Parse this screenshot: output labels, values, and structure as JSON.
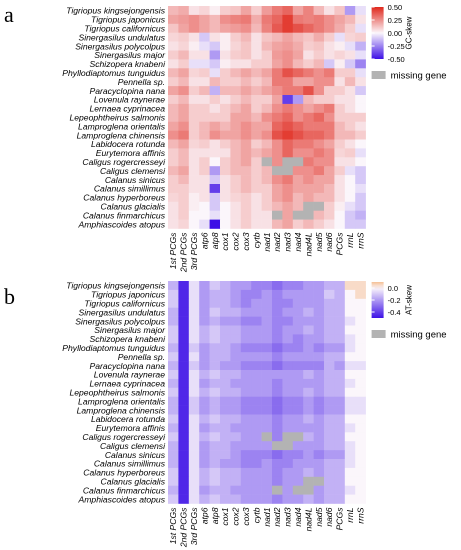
{
  "panel_labels": [
    "a",
    "b"
  ],
  "chart_data": [
    {
      "type": "heatmap",
      "panel": "a",
      "rows": [
        "Tigriopus kingsejongensis",
        "Tigriopus japonicus",
        "Tigriopus californicus",
        "Sinergasilus undulatus",
        "Sinergasilus polycolpus",
        "Sinergasilus major",
        "Schizopera knabeni",
        "Phyllodiaptomus tunguidus",
        "Pennella sp.",
        "Paracyclopina nana",
        "Lovenula raynerae",
        "Lernaea cyprinacea",
        "Lepeophtheirus salmonis",
        "Lamproglena orientalis",
        "Lamproglena chinensis",
        "Labidocera rotunda",
        "Eurytemora affinis",
        "Caligus rogercresseyi",
        "Caligus clemensi",
        "Calanus sinicus",
        "Calanus simillimus",
        "Calanus hyperboreus",
        "Calanus glacialis",
        "Calanus finmarchicus",
        "Amphiascoides atopus"
      ],
      "columns": [
        "1st PCGs",
        "2nd PCGs",
        "3rd PCGs",
        "atp6",
        "atp8",
        "cox1",
        "cox2",
        "cox3",
        "cytb",
        "nad1",
        "nad2",
        "nad3",
        "nad4",
        "nad4L",
        "nad5",
        "nad6",
        "PCGs",
        "rrnL",
        "rrnS"
      ],
      "legend_title": "GC-skew",
      "colorbar_ticks": [
        0.5,
        0.25,
        0.0,
        -0.25,
        -0.5
      ],
      "color_range": [
        -0.5,
        0.5
      ],
      "missing_label": "missing gene",
      "missing_color": "#b3b3b3",
      "colors": {
        "low": "#3d10e6",
        "mid": "#fbf6fb",
        "high": "#e0281c"
      },
      "values": [
        [
          0.15,
          0.18,
          0.05,
          0.08,
          0.02,
          0.1,
          0.12,
          0.2,
          0.1,
          0.22,
          0.3,
          0.35,
          0.2,
          0.28,
          0.15,
          0.05,
          0.12,
          -0.2,
          -0.05
        ],
        [
          0.2,
          0.22,
          0.25,
          0.2,
          0.15,
          0.25,
          0.28,
          0.3,
          0.18,
          0.3,
          0.35,
          0.45,
          0.3,
          0.28,
          0.3,
          0.25,
          0.2,
          0.15,
          0.05
        ],
        [
          0.12,
          0.2,
          0.25,
          0.2,
          0.15,
          0.2,
          0.22,
          0.25,
          0.15,
          0.28,
          0.38,
          0.45,
          0.4,
          0.35,
          0.3,
          0.25,
          0.18,
          0.1,
          -0.05
        ],
        [
          0.08,
          0.1,
          0.05,
          -0.1,
          0.05,
          0.02,
          0.1,
          0.15,
          0.05,
          0.12,
          0.15,
          0.2,
          0.15,
          0.12,
          0.18,
          0.1,
          -0.05,
          0.08,
          0.1
        ],
        [
          0.05,
          0.08,
          0.02,
          -0.05,
          -0.1,
          0.02,
          0.08,
          0.12,
          0.05,
          0.15,
          0.2,
          0.22,
          0.18,
          0.1,
          0.12,
          0.05,
          0.02,
          -0.05,
          -0.15
        ],
        [
          0.1,
          0.15,
          0.05,
          0.05,
          -0.2,
          0.05,
          0.1,
          0.12,
          0.05,
          0.1,
          0.22,
          0.25,
          0.2,
          0.05,
          0.1,
          0.05,
          0.08,
          0.05,
          -0.05
        ],
        [
          0.05,
          0.1,
          -0.05,
          -0.05,
          -0.1,
          0.02,
          0.05,
          0.05,
          0.1,
          0.1,
          0.2,
          0.25,
          0.15,
          0.1,
          0.15,
          -0.1,
          0.02,
          -0.1,
          -0.25
        ],
        [
          0.15,
          0.2,
          0.08,
          0.1,
          -0.05,
          0.1,
          0.15,
          0.2,
          0.15,
          0.2,
          0.3,
          0.4,
          0.35,
          0.3,
          0.25,
          0.3,
          0.1,
          0.1,
          -0.05
        ],
        [
          0.1,
          0.15,
          0.05,
          0.05,
          0.15,
          0.1,
          0.1,
          0.15,
          0.1,
          0.15,
          0.3,
          0.3,
          0.2,
          0.2,
          0.25,
          0.25,
          0.05,
          0.15,
          0.05
        ],
        [
          0.2,
          0.25,
          0.1,
          0.15,
          -0.15,
          0.15,
          0.15,
          0.2,
          0.15,
          0.2,
          0.25,
          0.3,
          0.3,
          0.4,
          0.25,
          0.1,
          0.1,
          0.05,
          -0.1
        ],
        [
          0.1,
          0.15,
          0.05,
          0.05,
          0.1,
          0.05,
          0.1,
          0.15,
          0.1,
          0.1,
          0.2,
          -0.4,
          -0.2,
          0.15,
          0.1,
          0.1,
          0.05,
          0.05,
          0.0
        ],
        [
          0.15,
          0.2,
          0.1,
          0.1,
          0.05,
          0.1,
          0.15,
          0.2,
          0.1,
          0.15,
          0.25,
          0.3,
          0.25,
          0.2,
          0.25,
          0.3,
          0.1,
          0.05,
          0.0
        ],
        [
          0.15,
          0.2,
          0.1,
          0.1,
          0.1,
          0.1,
          0.2,
          0.2,
          0.15,
          0.25,
          0.3,
          0.35,
          0.25,
          0.3,
          0.35,
          0.25,
          0.1,
          0.1,
          0.1
        ],
        [
          0.2,
          0.25,
          0.1,
          0.15,
          0.2,
          0.15,
          0.2,
          0.25,
          0.2,
          0.2,
          0.35,
          0.4,
          0.35,
          0.3,
          0.3,
          0.3,
          0.15,
          0.1,
          0.05
        ],
        [
          0.25,
          0.3,
          0.1,
          0.15,
          0.25,
          0.2,
          0.2,
          0.25,
          0.2,
          0.25,
          0.4,
          0.45,
          0.4,
          0.35,
          0.35,
          0.3,
          0.15,
          0.15,
          0.1
        ],
        [
          0.15,
          0.2,
          0.08,
          0.1,
          0.05,
          0.1,
          0.15,
          0.2,
          0.1,
          0.15,
          0.25,
          0.35,
          0.3,
          0.3,
          0.25,
          0.2,
          0.1,
          0.05,
          0.0
        ],
        [
          0.1,
          0.15,
          0.05,
          0.05,
          0.05,
          0.05,
          0.15,
          0.2,
          0.15,
          0.2,
          0.25,
          0.35,
          0.25,
          0.25,
          0.3,
          0.25,
          0.08,
          0.1,
          -0.05
        ],
        [
          0.1,
          0.15,
          0.05,
          0.1,
          0.0,
          0.1,
          0.15,
          0.2,
          0.1,
          null,
          0.25,
          null,
          null,
          0.3,
          0.25,
          0.25,
          0.05,
          0.05,
          0.0
        ],
        [
          0.15,
          0.2,
          0.05,
          0.1,
          -0.2,
          0.1,
          0.15,
          0.15,
          0.1,
          0.15,
          null,
          null,
          0.25,
          0.25,
          0.3,
          0.2,
          0.1,
          -0.05,
          -0.1
        ],
        [
          0.1,
          0.15,
          0.05,
          0.05,
          -0.1,
          0.05,
          0.1,
          0.15,
          0.1,
          0.15,
          0.25,
          0.3,
          0.2,
          0.25,
          0.2,
          0.2,
          0.05,
          0.0,
          -0.1
        ],
        [
          0.1,
          0.1,
          0.05,
          0.05,
          -0.4,
          0.05,
          0.1,
          0.15,
          0.1,
          0.1,
          0.2,
          0.25,
          0.2,
          0.2,
          0.2,
          0.15,
          0.05,
          0.0,
          -0.05
        ],
        [
          0.08,
          0.1,
          0.02,
          0.05,
          -0.1,
          0.05,
          0.08,
          0.1,
          0.05,
          0.1,
          0.2,
          0.25,
          0.15,
          0.2,
          0.15,
          0.15,
          0.05,
          0.0,
          -0.1
        ],
        [
          0.05,
          0.1,
          0.02,
          0.0,
          -0.1,
          0.0,
          0.05,
          0.1,
          0.05,
          0.1,
          0.15,
          0.2,
          0.15,
          null,
          null,
          0.1,
          0.02,
          -0.05,
          -0.1
        ],
        [
          0.05,
          0.1,
          0.0,
          0.0,
          -0.05,
          0.0,
          0.05,
          0.1,
          0.05,
          0.05,
          null,
          0.2,
          null,
          null,
          0.15,
          0.1,
          0.0,
          -0.1,
          -0.15
        ],
        [
          0.05,
          0.08,
          0.0,
          -0.05,
          -0.5,
          0.0,
          0.05,
          0.1,
          0.05,
          0.05,
          0.15,
          0.2,
          0.1,
          0.15,
          0.1,
          0.05,
          0.0,
          -0.1,
          -0.1
        ]
      ]
    },
    {
      "type": "heatmap",
      "panel": "b",
      "rows": [
        "Tigriopus kingsejongensis",
        "Tigriopus japonicus",
        "Tigriopus californicus",
        "Sinergasilus undulatus",
        "Sinergasilus polycolpus",
        "Sinergasilus major",
        "Schizopera knabeni",
        "Phyllodiaptomus tunguidus",
        "Pennella sp.",
        "Paracyclopina nana",
        "Lovenula raynerae",
        "Lernaea cyprinacea",
        "Lepeophtheirus salmonis",
        "Lamproglena orientalis",
        "Lamproglena chinensis",
        "Labidocera rotunda",
        "Eurytemora affinis",
        "Caligus rogercresseyi",
        "Caligus clemensi",
        "Calanus sinicus",
        "Calanus simillimus",
        "Calanus hyperboreus",
        "Calanus glacialis",
        "Calanus finmarchicus",
        "Amphiascoides atopus"
      ],
      "columns": [
        "1st PCGs",
        "2nd PCGs",
        "3rd PCGs",
        "atp6",
        "atp8",
        "cox1",
        "cox2",
        "cox3",
        "cytb",
        "nad1",
        "nad2",
        "nad3",
        "nad4",
        "nad4L",
        "nad5",
        "nad6",
        "PCGs",
        "rrnL",
        "rrnS"
      ],
      "legend_title": "AT-skew",
      "colorbar_ticks": [
        0.0,
        -0.2,
        -0.4
      ],
      "color_range": [
        -0.5,
        0.1
      ],
      "missing_label": "missing gene",
      "missing_color": "#b3b3b3",
      "colors": {
        "low": "#3d10e6",
        "mid": "#fbf6fb",
        "high": "#f4bf94"
      },
      "values": [
        [
          -0.15,
          -0.45,
          -0.05,
          -0.2,
          -0.1,
          -0.15,
          -0.2,
          -0.2,
          -0.25,
          -0.25,
          -0.3,
          -0.25,
          -0.25,
          -0.2,
          -0.2,
          -0.15,
          -0.15,
          0.05,
          0.05
        ],
        [
          -0.1,
          -0.45,
          -0.05,
          -0.2,
          -0.15,
          -0.15,
          -0.2,
          -0.25,
          -0.25,
          -0.2,
          -0.25,
          -0.2,
          -0.2,
          -0.2,
          -0.2,
          -0.1,
          -0.15,
          0.0,
          0.05
        ],
        [
          -0.1,
          -0.45,
          -0.05,
          -0.2,
          -0.15,
          -0.15,
          -0.2,
          -0.25,
          -0.2,
          -0.2,
          -0.25,
          -0.25,
          -0.2,
          -0.2,
          -0.2,
          -0.15,
          -0.15,
          0.0,
          0.0
        ],
        [
          -0.15,
          -0.45,
          -0.05,
          -0.2,
          -0.1,
          -0.15,
          -0.15,
          -0.2,
          -0.2,
          -0.2,
          -0.25,
          -0.2,
          -0.2,
          -0.15,
          -0.2,
          -0.15,
          -0.15,
          0.0,
          0.0
        ],
        [
          -0.15,
          -0.45,
          -0.05,
          -0.2,
          -0.15,
          -0.2,
          -0.2,
          -0.25,
          -0.25,
          -0.2,
          -0.25,
          -0.25,
          -0.2,
          -0.2,
          -0.2,
          -0.15,
          -0.15,
          -0.05,
          0.0
        ],
        [
          -0.1,
          -0.45,
          -0.05,
          -0.15,
          -0.1,
          -0.15,
          -0.15,
          -0.2,
          -0.2,
          -0.2,
          -0.25,
          -0.2,
          -0.2,
          -0.15,
          -0.2,
          -0.15,
          -0.15,
          0.0,
          0.0
        ],
        [
          -0.1,
          -0.45,
          -0.05,
          -0.15,
          -0.1,
          -0.15,
          -0.15,
          -0.2,
          -0.2,
          -0.2,
          -0.25,
          -0.2,
          -0.25,
          -0.2,
          -0.2,
          -0.15,
          -0.15,
          -0.05,
          0.0
        ],
        [
          -0.15,
          -0.45,
          -0.1,
          -0.2,
          -0.15,
          -0.15,
          -0.2,
          -0.25,
          -0.25,
          -0.25,
          -0.3,
          -0.25,
          -0.25,
          -0.2,
          -0.25,
          -0.2,
          -0.2,
          -0.05,
          0.0
        ],
        [
          -0.1,
          -0.45,
          -0.05,
          -0.2,
          -0.15,
          -0.15,
          -0.2,
          -0.2,
          -0.2,
          -0.2,
          -0.25,
          -0.2,
          -0.2,
          -0.2,
          -0.2,
          -0.15,
          -0.15,
          0.0,
          0.0
        ],
        [
          -0.15,
          -0.45,
          -0.1,
          -0.2,
          -0.15,
          -0.2,
          -0.2,
          -0.25,
          -0.25,
          -0.25,
          -0.3,
          -0.25,
          -0.25,
          -0.25,
          -0.25,
          -0.15,
          -0.2,
          -0.05,
          -0.05
        ],
        [
          -0.1,
          -0.45,
          -0.05,
          -0.15,
          -0.1,
          -0.15,
          -0.15,
          -0.2,
          -0.2,
          -0.2,
          -0.2,
          -0.2,
          -0.2,
          -0.15,
          -0.2,
          -0.15,
          -0.15,
          0.0,
          0.0
        ],
        [
          -0.15,
          -0.45,
          -0.05,
          -0.2,
          -0.15,
          -0.15,
          -0.2,
          -0.2,
          -0.2,
          -0.2,
          -0.25,
          -0.2,
          -0.2,
          -0.2,
          -0.2,
          -0.15,
          -0.15,
          -0.05,
          0.0
        ],
        [
          -0.1,
          -0.45,
          -0.05,
          -0.15,
          -0.1,
          -0.15,
          -0.15,
          -0.2,
          -0.2,
          -0.2,
          -0.25,
          -0.2,
          -0.2,
          -0.15,
          -0.2,
          -0.15,
          -0.15,
          0.0,
          0.0
        ],
        [
          -0.15,
          -0.45,
          -0.1,
          -0.2,
          -0.15,
          -0.2,
          -0.2,
          -0.25,
          -0.25,
          -0.25,
          -0.3,
          -0.25,
          -0.25,
          -0.2,
          -0.25,
          -0.2,
          -0.2,
          -0.05,
          -0.05
        ],
        [
          -0.15,
          -0.45,
          -0.1,
          -0.2,
          -0.15,
          -0.2,
          -0.2,
          -0.25,
          -0.25,
          -0.25,
          -0.3,
          -0.25,
          -0.25,
          -0.2,
          -0.25,
          -0.2,
          -0.2,
          -0.05,
          -0.05
        ],
        [
          -0.1,
          -0.45,
          -0.05,
          -0.15,
          -0.1,
          -0.15,
          -0.15,
          -0.2,
          -0.2,
          -0.2,
          -0.25,
          -0.2,
          -0.2,
          -0.15,
          -0.2,
          -0.15,
          -0.15,
          0.0,
          0.0
        ],
        [
          -0.15,
          -0.45,
          -0.05,
          -0.2,
          -0.15,
          -0.15,
          -0.2,
          -0.2,
          -0.2,
          -0.2,
          -0.25,
          -0.2,
          -0.2,
          -0.2,
          -0.2,
          -0.15,
          -0.15,
          -0.05,
          0.0
        ],
        [
          -0.1,
          -0.45,
          -0.05,
          -0.15,
          -0.1,
          -0.15,
          -0.15,
          -0.2,
          -0.2,
          null,
          -0.25,
          null,
          null,
          -0.15,
          -0.2,
          -0.15,
          -0.15,
          0.0,
          0.0
        ],
        [
          -0.15,
          -0.45,
          -0.05,
          -0.2,
          -0.15,
          -0.15,
          -0.2,
          -0.2,
          -0.2,
          -0.2,
          null,
          null,
          -0.2,
          -0.2,
          -0.2,
          -0.15,
          -0.15,
          -0.05,
          0.0
        ],
        [
          -0.15,
          -0.45,
          -0.05,
          -0.2,
          -0.15,
          -0.15,
          -0.2,
          -0.25,
          -0.25,
          -0.25,
          -0.3,
          -0.25,
          -0.25,
          -0.2,
          -0.25,
          -0.2,
          -0.2,
          -0.05,
          0.0
        ],
        [
          -0.15,
          -0.45,
          -0.05,
          -0.2,
          -0.15,
          -0.2,
          -0.2,
          -0.25,
          -0.25,
          -0.2,
          -0.25,
          -0.25,
          -0.2,
          -0.2,
          -0.2,
          -0.15,
          -0.15,
          -0.05,
          0.0
        ],
        [
          -0.1,
          -0.45,
          -0.05,
          -0.15,
          -0.1,
          -0.15,
          -0.15,
          -0.2,
          -0.2,
          -0.2,
          -0.25,
          -0.2,
          -0.2,
          -0.15,
          -0.2,
          -0.15,
          -0.15,
          0.0,
          0.0
        ],
        [
          -0.1,
          -0.45,
          -0.05,
          -0.15,
          -0.1,
          -0.15,
          -0.15,
          -0.2,
          -0.2,
          -0.2,
          -0.25,
          -0.2,
          -0.2,
          null,
          null,
          -0.15,
          -0.15,
          0.0,
          0.0
        ],
        [
          -0.15,
          -0.45,
          -0.05,
          -0.2,
          -0.15,
          -0.15,
          -0.2,
          -0.2,
          -0.2,
          -0.2,
          null,
          -0.2,
          null,
          null,
          -0.2,
          -0.15,
          -0.15,
          -0.05,
          0.0
        ],
        [
          -0.1,
          -0.45,
          -0.05,
          -0.15,
          -0.1,
          -0.15,
          -0.15,
          -0.2,
          -0.2,
          -0.2,
          -0.25,
          -0.2,
          -0.2,
          -0.15,
          -0.2,
          -0.15,
          -0.15,
          0.0,
          0.0
        ]
      ]
    }
  ]
}
